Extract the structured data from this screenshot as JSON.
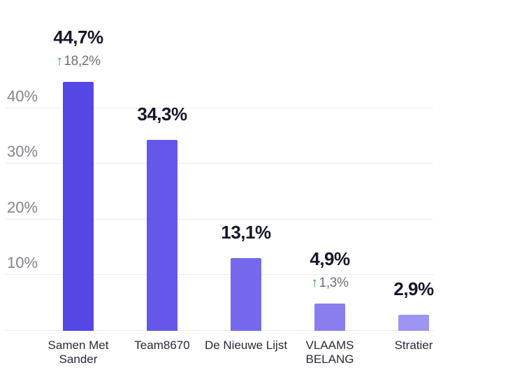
{
  "chart_data": {
    "type": "bar",
    "title": "",
    "categories": [
      "Samen Met\nSander",
      "Team8670",
      "De Nieuwe Lijst",
      "VLAAMS\nBELANG",
      "Stratier"
    ],
    "values": [
      44.7,
      34.3,
      13.1,
      4.9,
      2.9
    ],
    "value_labels": [
      "44,7%",
      "34,3%",
      "13,1%",
      "4,9%",
      "2,9%"
    ],
    "changes": [
      {
        "direction": "up",
        "arrow": "↑",
        "label": "18,2%"
      },
      null,
      null,
      {
        "direction": "up",
        "arrow": "↑",
        "label": "1,3%"
      },
      null
    ],
    "bar_colors": [
      "#5447e4",
      "#6557e9",
      "#7568ec",
      "#8a7eee",
      "#9e94f1"
    ],
    "y_ticks": [
      {
        "value": 10,
        "label": "10%"
      },
      {
        "value": 20,
        "label": "20%"
      },
      {
        "value": 30,
        "label": "30%"
      },
      {
        "value": 40,
        "label": "40%"
      }
    ],
    "ylim": [
      0,
      59
    ],
    "grid": true,
    "legend": null,
    "xlabel": "",
    "ylabel": ""
  },
  "colors": {
    "background": "#ffffff",
    "gridline": "#ededf0",
    "y_tick_text": "#84848e",
    "value_text": "#17172b",
    "change_text": "#6f6f78",
    "change_arrow_up": "#2f9e44",
    "category_text": "#2b2b35"
  }
}
